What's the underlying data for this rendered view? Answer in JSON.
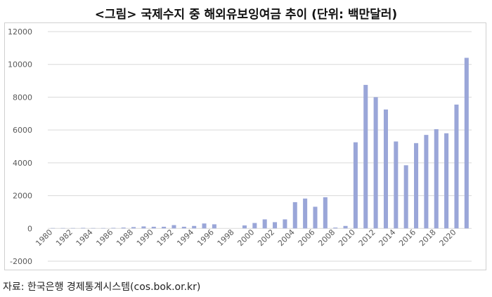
{
  "title": "<그림> 국제수지 중 해외유보잉여금 추이 (단위: 백만달러)",
  "source": "자료: 한국은행 경제통계시스템(cos.bok.or.kr)",
  "chart_data": {
    "type": "bar",
    "title": "<그림> 국제수지 중 해외유보잉여금 추이 (단위: 백만달러)",
    "xlabel": "",
    "ylabel": "",
    "ylim": [
      -2000,
      12000
    ],
    "yticks": [
      "12000",
      "10000",
      "8000",
      "6000",
      "4000",
      "2000",
      "0",
      "-2000"
    ],
    "grid": true,
    "bar_color": "#9aa6d8",
    "categories": [
      "1980",
      "1981",
      "1982",
      "1983",
      "1984",
      "1985",
      "1986",
      "1987",
      "1988",
      "1989",
      "1990",
      "1991",
      "1992",
      "1993",
      "1994",
      "1995",
      "1996",
      "1997",
      "1998",
      "1999",
      "2000",
      "2001",
      "2002",
      "2003",
      "2004",
      "2005",
      "2006",
      "2007",
      "2008",
      "2009",
      "2010",
      "2011",
      "2012",
      "2013",
      "2014",
      "2015",
      "2016",
      "2017",
      "2018",
      "2019",
      "2020",
      "2021"
    ],
    "tick_labels": [
      "1980",
      "1982",
      "1984",
      "1986",
      "1988",
      "1990",
      "1992",
      "1994",
      "1996",
      "1998",
      "2000",
      "2002",
      "2004",
      "2006",
      "2008",
      "2010",
      "2012",
      "2014",
      "2016",
      "2018",
      "2020"
    ],
    "values": [
      20,
      20,
      20,
      30,
      20,
      20,
      30,
      50,
      80,
      120,
      100,
      100,
      200,
      100,
      150,
      300,
      250,
      0,
      0,
      180,
      330,
      550,
      380,
      550,
      1600,
      1820,
      1320,
      1900,
      50,
      150,
      5250,
      8750,
      8000,
      7250,
      5300,
      3850,
      5200,
      5700,
      6050,
      5800,
      7550,
      10400
    ]
  }
}
